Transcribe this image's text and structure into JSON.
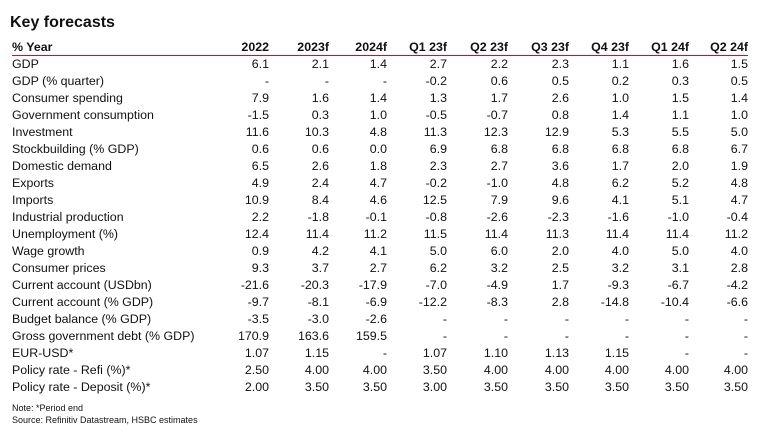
{
  "title": "Key forecasts",
  "headers": [
    "% Year",
    "2022",
    "2023f",
    "2024f",
    "Q1 23f",
    "Q2 23f",
    "Q3 23f",
    "Q4 23f",
    "Q1 24f",
    "Q2 24f"
  ],
  "rows": [
    [
      "GDP",
      "6.1",
      "2.1",
      "1.4",
      "2.7",
      "2.2",
      "2.3",
      "1.1",
      "1.6",
      "1.5"
    ],
    [
      "GDP (% quarter)",
      "-",
      "-",
      "-",
      "-0.2",
      "0.6",
      "0.5",
      "0.2",
      "0.3",
      "0.5"
    ],
    [
      "Consumer spending",
      "7.9",
      "1.6",
      "1.4",
      "1.3",
      "1.7",
      "2.6",
      "1.0",
      "1.5",
      "1.4"
    ],
    [
      "Government consumption",
      "-1.5",
      "0.3",
      "1.0",
      "-0.5",
      "-0.7",
      "0.8",
      "1.4",
      "1.1",
      "1.0"
    ],
    [
      "Investment",
      "11.6",
      "10.3",
      "4.8",
      "11.3",
      "12.3",
      "12.9",
      "5.3",
      "5.5",
      "5.0"
    ],
    [
      "Stockbuilding (% GDP)",
      "0.6",
      "0.6",
      "0.0",
      "6.9",
      "6.8",
      "6.8",
      "6.8",
      "6.8",
      "6.7"
    ],
    [
      "Domestic demand",
      "6.5",
      "2.6",
      "1.8",
      "2.3",
      "2.7",
      "3.6",
      "1.7",
      "2.0",
      "1.9"
    ],
    [
      "Exports",
      "4.9",
      "2.4",
      "4.7",
      "-0.2",
      "-1.0",
      "4.8",
      "6.2",
      "5.2",
      "4.8"
    ],
    [
      "Imports",
      "10.9",
      "8.4",
      "4.6",
      "12.5",
      "7.9",
      "9.6",
      "4.1",
      "5.1",
      "4.7"
    ],
    [
      "Industrial production",
      "2.2",
      "-1.8",
      "-0.1",
      "-0.8",
      "-2.6",
      "-2.3",
      "-1.6",
      "-1.0",
      "-0.4"
    ],
    [
      "Unemployment (%)",
      "12.4",
      "11.4",
      "11.2",
      "11.5",
      "11.4",
      "11.3",
      "11.4",
      "11.4",
      "11.2"
    ],
    [
      "Wage growth",
      "0.9",
      "4.2",
      "4.1",
      "5.0",
      "6.0",
      "2.0",
      "4.0",
      "5.0",
      "4.0"
    ],
    [
      "Consumer prices",
      "9.3",
      "3.7",
      "2.7",
      "6.2",
      "3.2",
      "2.5",
      "3.2",
      "3.1",
      "2.8"
    ],
    [
      "Current account (USDbn)",
      "-21.6",
      "-20.3",
      "-17.9",
      "-7.0",
      "-4.9",
      "1.7",
      "-9.3",
      "-6.7",
      "-4.2"
    ],
    [
      "Current account (% GDP)",
      "-9.7",
      "-8.1",
      "-6.9",
      "-12.2",
      "-8.3",
      "2.8",
      "-14.8",
      "-10.4",
      "-6.6"
    ],
    [
      "Budget balance (% GDP)",
      "-3.5",
      "-3.0",
      "-2.6",
      "-",
      "-",
      "-",
      "-",
      "-",
      "-"
    ],
    [
      "Gross government debt (% GDP)",
      "170.9",
      "163.6",
      "159.5",
      "-",
      "-",
      "-",
      "-",
      "-",
      "-"
    ],
    [
      "EUR-USD*",
      "1.07",
      "1.15",
      "-",
      "1.07",
      "1.10",
      "1.13",
      "1.15",
      "-",
      "-"
    ],
    [
      "Policy rate - Refi (%)*",
      "2.50",
      "4.00",
      "4.00",
      "3.50",
      "4.00",
      "4.00",
      "4.00",
      "4.00",
      "4.00"
    ],
    [
      "Policy rate - Deposit (%)*",
      "2.00",
      "3.50",
      "3.50",
      "3.00",
      "3.50",
      "3.50",
      "3.50",
      "3.50",
      "3.50"
    ]
  ],
  "note": "Note: *Period end",
  "source": "Source: Refinitiv Datastream, HSBC estimates"
}
